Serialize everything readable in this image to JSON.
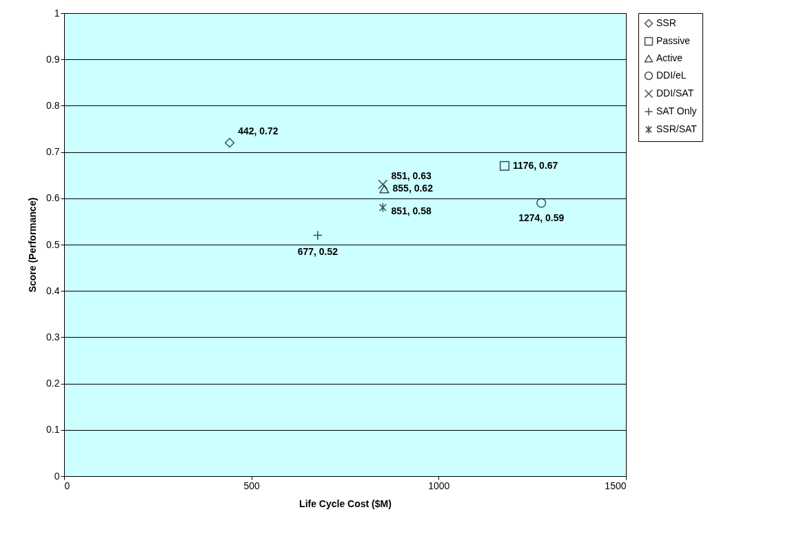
{
  "chart_data": {
    "type": "scatter",
    "xlabel": "Life Cycle Cost ($M)",
    "ylabel": "Score (Performance)",
    "xlim": [
      0,
      1500
    ],
    "xticks": [
      0,
      500,
      1000,
      1500
    ],
    "ylim": [
      0,
      1
    ],
    "yticks": [
      0,
      0.1,
      0.2,
      0.3,
      0.4,
      0.5,
      0.6,
      0.7,
      0.8,
      0.9,
      1
    ],
    "grid": "y",
    "legend": "right",
    "series": [
      {
        "name": "SSR",
        "color": "#000000",
        "marker": "diamond",
        "x": [
          442
        ],
        "values": [
          0.72
        ],
        "value_labels": [
          "442, 0.72"
        ]
      },
      {
        "name": "Passive",
        "color": "#000000",
        "marker": "square",
        "x": [
          1176
        ],
        "values": [
          0.67
        ],
        "value_labels": [
          "1176, 0.67"
        ]
      },
      {
        "name": "Active",
        "color": "#000000",
        "marker": "triangle",
        "x": [
          855
        ],
        "values": [
          0.62
        ],
        "value_labels": [
          "855, 0.62"
        ]
      },
      {
        "name": "DDI/eL",
        "color": "#000000",
        "marker": "circle",
        "x": [
          1274
        ],
        "values": [
          0.59
        ],
        "value_labels": [
          "1274, 0.59"
        ]
      },
      {
        "name": "DDI/SAT",
        "color": "#000000",
        "marker": "x",
        "x": [
          851
        ],
        "values": [
          0.63
        ],
        "value_labels": [
          "851, 0.63"
        ]
      },
      {
        "name": "SAT Only",
        "color": "#000000",
        "marker": "cross",
        "x": [
          677
        ],
        "values": [
          0.52
        ],
        "value_labels": [
          "677, 0.52"
        ]
      },
      {
        "name": "SSR/SAT",
        "color": "#000000",
        "x": [
          851
        ],
        "values": [
          0.58
        ],
        "value_labels": [
          "851, 0.58"
        ]
      }
    ]
  }
}
